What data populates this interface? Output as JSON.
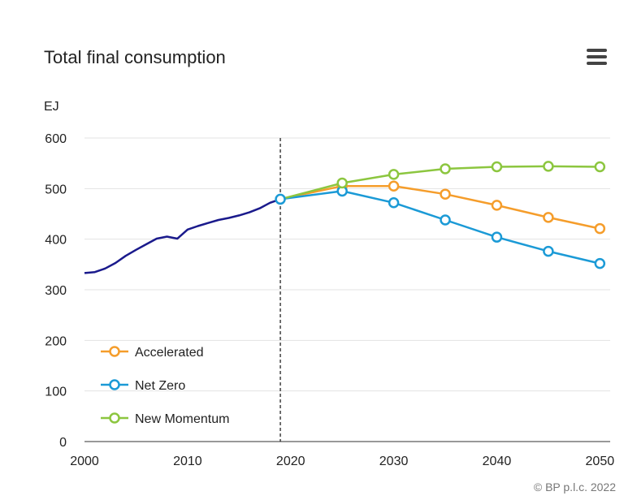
{
  "title": "Total final consumption",
  "credit": "© BP p.l.c. 2022",
  "menu_icon": "hamburger-menu-icon",
  "chart_data": {
    "type": "line",
    "title": "Total final consumption",
    "ylabel": "EJ",
    "xlabel": "",
    "xlim": [
      2000,
      2051
    ],
    "ylim": [
      0,
      600
    ],
    "x_ticks": [
      2000,
      2010,
      2020,
      2030,
      2040,
      2050
    ],
    "y_ticks": [
      0,
      100,
      200,
      300,
      400,
      500,
      600
    ],
    "grid": "horizontal",
    "divider_year": 2019,
    "legend_position": "bottom-left",
    "historical": {
      "color": "#1a1a8c",
      "points": [
        [
          2000,
          333
        ],
        [
          2001,
          335
        ],
        [
          2002,
          342
        ],
        [
          2003,
          353
        ],
        [
          2004,
          367
        ],
        [
          2005,
          379
        ],
        [
          2006,
          390
        ],
        [
          2007,
          401
        ],
        [
          2008,
          405
        ],
        [
          2009,
          401
        ],
        [
          2010,
          419
        ],
        [
          2011,
          426
        ],
        [
          2012,
          432
        ],
        [
          2013,
          438
        ],
        [
          2014,
          442
        ],
        [
          2015,
          447
        ],
        [
          2016,
          453
        ],
        [
          2017,
          461
        ],
        [
          2018,
          472
        ],
        [
          2019,
          479
        ]
      ]
    },
    "series": [
      {
        "name": "Accelerated",
        "color": "#f59d2b",
        "points": [
          [
            2019,
            479
          ],
          [
            2025,
            505
          ],
          [
            2030,
            505
          ],
          [
            2035,
            489
          ],
          [
            2040,
            467
          ],
          [
            2045,
            443
          ],
          [
            2050,
            421
          ]
        ],
        "markers": [
          2025,
          2030,
          2035,
          2040,
          2045,
          2050
        ]
      },
      {
        "name": "Net Zero",
        "color": "#1b9ad6",
        "points": [
          [
            2019,
            479
          ],
          [
            2025,
            495
          ],
          [
            2030,
            472
          ],
          [
            2035,
            438
          ],
          [
            2040,
            404
          ],
          [
            2045,
            376
          ],
          [
            2050,
            352
          ]
        ],
        "markers": [
          2019,
          2025,
          2030,
          2035,
          2040,
          2045,
          2050
        ]
      },
      {
        "name": "New Momentum",
        "color": "#8cc63f",
        "points": [
          [
            2019,
            479
          ],
          [
            2025,
            511
          ],
          [
            2030,
            528
          ],
          [
            2035,
            539
          ],
          [
            2040,
            543
          ],
          [
            2045,
            544
          ],
          [
            2050,
            543
          ]
        ],
        "markers": [
          2025,
          2030,
          2035,
          2040,
          2045,
          2050
        ]
      }
    ]
  }
}
